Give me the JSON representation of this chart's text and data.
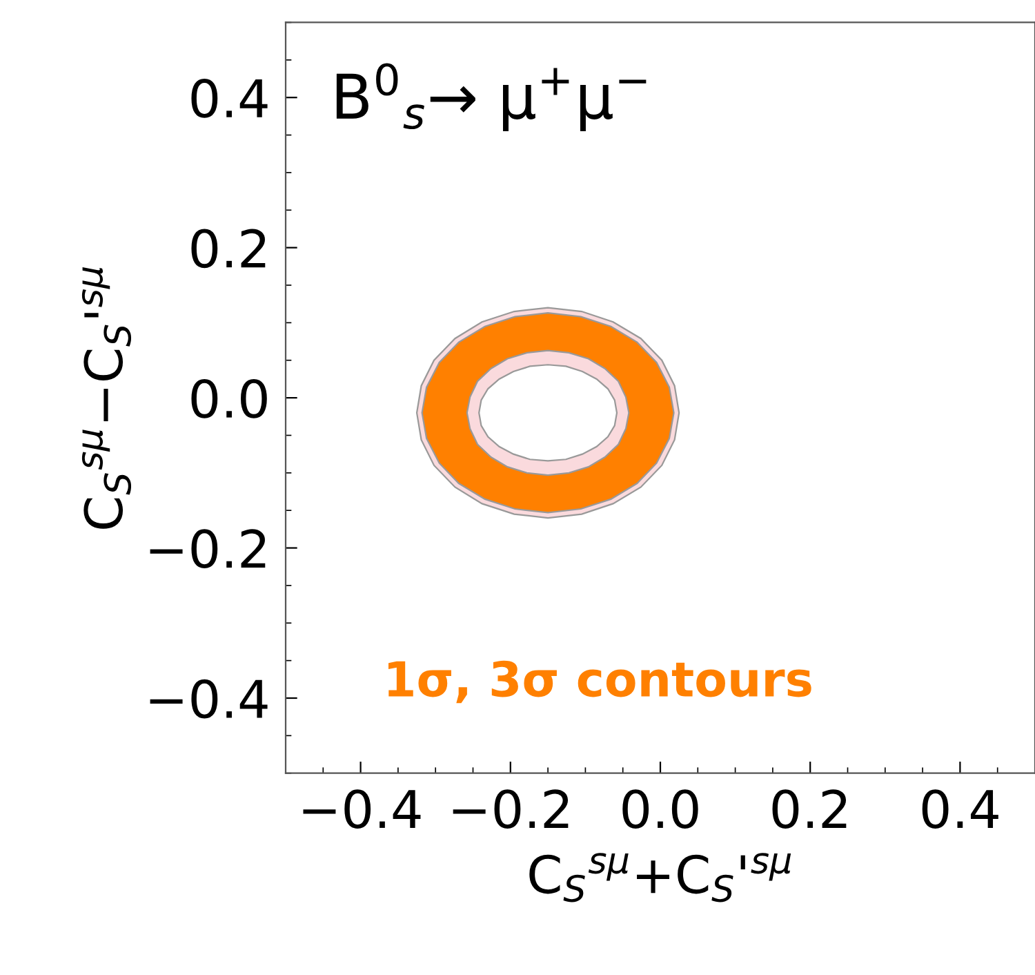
{
  "chart_data": {
    "type": "area",
    "title": "B$^{0}$$_{s}$→ μ$^{+}$μ$^{−}$",
    "xlabel": "C$_{S}$$^{sμ}$+C$_{S}$'$^{sμ}$",
    "ylabel": "C$_{S}$$^{sμ}$−C$_{S}$'$^{sμ}$",
    "annotations": [
      "1σ, 3σ contours"
    ],
    "series": [
      {
        "color": "#fadadd",
        "x": [
          0.025,
          0.019,
          0.002,
          -0.026,
          -0.063,
          -0.105,
          -0.15,
          -0.195,
          -0.238,
          -0.274,
          -0.302,
          -0.319,
          -0.325,
          -0.319,
          -0.302,
          -0.274,
          -0.238,
          -0.195,
          -0.15,
          -0.105,
          -0.063,
          -0.026,
          0.002,
          0.019
        ],
        "values": [
          -0.02,
          0.016,
          0.05,
          0.079,
          0.101,
          0.115,
          0.12,
          0.115,
          0.101,
          0.079,
          0.05,
          0.016,
          -0.02,
          -0.056,
          -0.09,
          -0.119,
          -0.141,
          -0.155,
          -0.16,
          -0.155,
          -0.141,
          -0.119,
          -0.09,
          -0.056
        ]
      },
      {
        "color": "#ff8000",
        "x": [
          0.018,
          0.012,
          -0.005,
          -0.031,
          -0.066,
          -0.106,
          -0.15,
          -0.194,
          -0.234,
          -0.269,
          -0.295,
          -0.312,
          -0.318,
          -0.312,
          -0.295,
          -0.269,
          -0.234,
          -0.194,
          -0.15,
          -0.106,
          -0.066,
          -0.031,
          -0.005,
          0.012
        ],
        "values": [
          -0.02,
          0.014,
          0.047,
          0.074,
          0.095,
          0.108,
          0.113,
          0.108,
          0.095,
          0.074,
          0.047,
          0.014,
          -0.02,
          -0.054,
          -0.087,
          -0.114,
          -0.135,
          -0.148,
          -0.153,
          -0.148,
          -0.135,
          -0.114,
          -0.087,
          -0.054
        ]
      },
      {
        "color": "#fadadd",
        "x": [
          -0.042,
          -0.046,
          -0.056,
          -0.074,
          -0.096,
          -0.122,
          -0.15,
          -0.178,
          -0.204,
          -0.226,
          -0.244,
          -0.254,
          -0.258,
          -0.254,
          -0.244,
          -0.226,
          -0.204,
          -0.178,
          -0.15,
          -0.122,
          -0.096,
          -0.074,
          -0.056,
          -0.046
        ],
        "values": [
          -0.02,
          0.001,
          0.022,
          0.039,
          0.052,
          0.06,
          0.063,
          0.06,
          0.052,
          0.039,
          0.022,
          0.001,
          -0.02,
          -0.041,
          -0.062,
          -0.079,
          -0.092,
          -0.1,
          -0.103,
          -0.1,
          -0.092,
          -0.079,
          -0.062,
          -0.041
        ]
      },
      {
        "color": "#ffffff",
        "x": [
          -0.058,
          -0.061,
          -0.07,
          -0.085,
          -0.104,
          -0.126,
          -0.15,
          -0.174,
          -0.196,
          -0.215,
          -0.23,
          -0.239,
          -0.242,
          -0.239,
          -0.23,
          -0.215,
          -0.196,
          -0.174,
          -0.15,
          -0.126,
          -0.104,
          -0.085,
          -0.07,
          -0.061
        ],
        "values": [
          -0.02,
          -0.003,
          0.012,
          0.025,
          0.035,
          0.042,
          0.044,
          0.042,
          0.035,
          0.025,
          0.012,
          -0.003,
          -0.02,
          -0.037,
          -0.052,
          -0.065,
          -0.075,
          -0.082,
          -0.084,
          -0.082,
          -0.075,
          -0.065,
          -0.052,
          -0.037
        ]
      }
    ],
    "xlim": [
      -0.5,
      0.5
    ],
    "ylim": [
      -0.5,
      0.5
    ],
    "xticks": [
      {
        "value": -0.4,
        "label": "−0.4"
      },
      {
        "value": -0.2,
        "label": "−0.2"
      },
      {
        "value": 0,
        "label": "0.0"
      },
      {
        "value": 0.2,
        "label": "0.2"
      },
      {
        "value": 0.4,
        "label": "0.4"
      }
    ],
    "yticks": [
      {
        "value": -0.4,
        "label": "−0.4"
      },
      {
        "value": -0.2,
        "label": "−0.2"
      },
      {
        "value": 0,
        "label": "0.0"
      },
      {
        "value": 0.2,
        "label": "0.2"
      },
      {
        "value": 0.4,
        "label": "0.4"
      }
    ]
  }
}
